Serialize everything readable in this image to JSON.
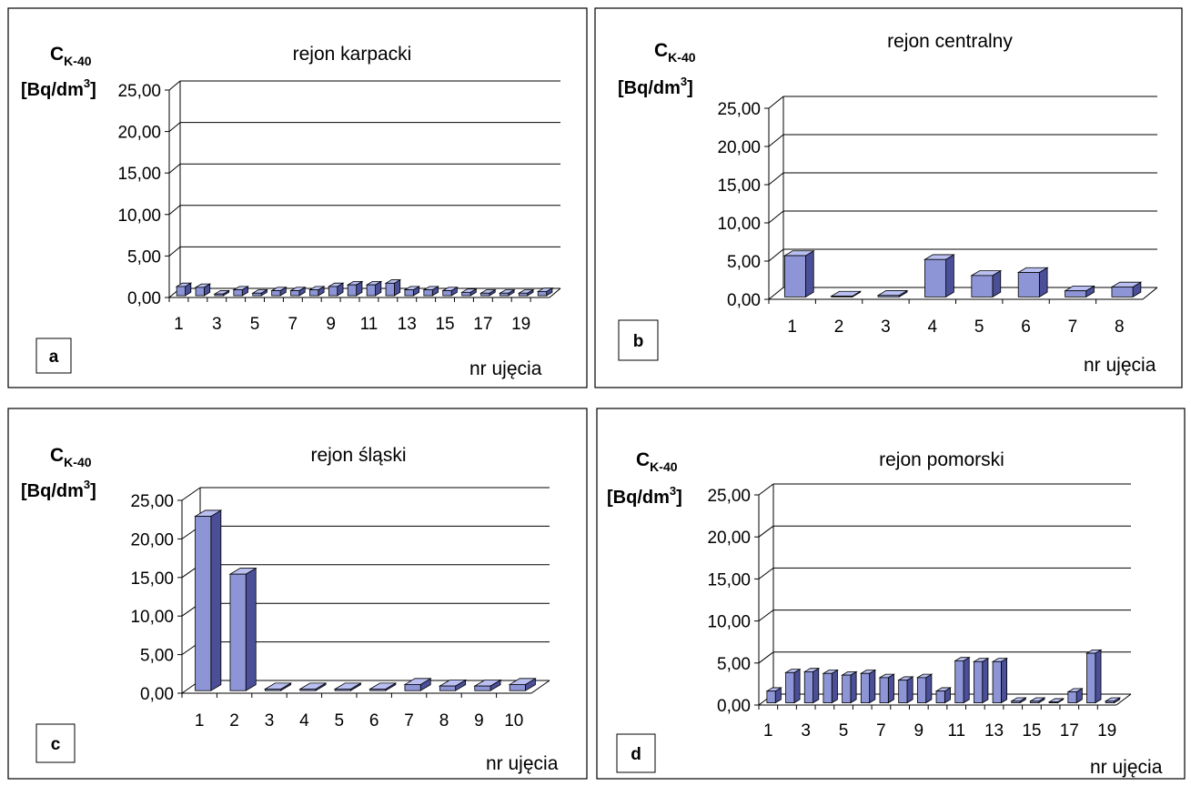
{
  "colors": {
    "bar_front": "#8e95d6",
    "bar_top": "#b9bff0",
    "bar_side": "#4a4f97",
    "grid": "#000000"
  },
  "chart_data": [
    {
      "type": "bar",
      "panel_tag": "a",
      "title": "rejon karpacki",
      "ylabel_main": "C",
      "ylabel_sub": "K-40",
      "yunit_pre": "[Bq/dm",
      "yunit_sup": "3",
      "yunit_post": "]",
      "xlabel": "nr ujęcia",
      "ylim": [
        0,
        25
      ],
      "grid": true,
      "yticks": [
        "0,00",
        "5,00",
        "10,00",
        "15,00",
        "20,00",
        "25,00"
      ],
      "categories": [
        1,
        2,
        3,
        4,
        5,
        6,
        7,
        8,
        9,
        10,
        11,
        12,
        13,
        14,
        15,
        16,
        17,
        18,
        19,
        20
      ],
      "xtick_labels": [
        "1",
        "3",
        "5",
        "7",
        "9",
        "11",
        "13",
        "15",
        "17",
        "19"
      ],
      "values": [
        1.1,
        1.0,
        0.2,
        0.7,
        0.3,
        0.6,
        0.6,
        0.7,
        1.1,
        1.3,
        1.3,
        1.5,
        0.7,
        0.7,
        0.6,
        0.4,
        0.3,
        0.3,
        0.3,
        0.5
      ]
    },
    {
      "type": "bar",
      "panel_tag": "b",
      "title": "rejon centralny",
      "ylabel_main": "C",
      "ylabel_sub": "K-40",
      "yunit_pre": "[Bq/dm",
      "yunit_sup": "3",
      "yunit_post": "]",
      "xlabel": "nr ujęcia",
      "ylim": [
        0,
        25
      ],
      "grid": true,
      "yticks": [
        "0,00",
        "5,00",
        "10,00",
        "15,00",
        "20,00",
        "25,00"
      ],
      "categories": [
        1,
        2,
        3,
        4,
        5,
        6,
        7,
        8
      ],
      "xtick_labels": [
        "1",
        "2",
        "3",
        "4",
        "5",
        "6",
        "7",
        "8"
      ],
      "values": [
        5.4,
        0.1,
        0.2,
        4.9,
        2.8,
        3.2,
        0.8,
        1.3
      ]
    },
    {
      "type": "bar",
      "panel_tag": "c",
      "title": "rejon śląski",
      "ylabel_main": "C",
      "ylabel_sub": "K-40",
      "yunit_pre": "[Bq/dm",
      "yunit_sup": "3",
      "yunit_post": "]",
      "xlabel": "nr ujęcia",
      "ylim": [
        0,
        25
      ],
      "grid": true,
      "yticks": [
        "0,00",
        "5,00",
        "10,00",
        "15,00",
        "20,00",
        "25,00"
      ],
      "categories": [
        1,
        2,
        3,
        4,
        5,
        6,
        7,
        8,
        9,
        10
      ],
      "xtick_labels": [
        "1",
        "2",
        "3",
        "4",
        "5",
        "6",
        "7",
        "8",
        "9",
        "10"
      ],
      "values": [
        22.6,
        15.1,
        0.2,
        0.2,
        0.2,
        0.2,
        0.8,
        0.6,
        0.6,
        0.8
      ]
    },
    {
      "type": "bar",
      "panel_tag": "d",
      "title": "rejon pomorski",
      "ylabel_main": "C",
      "ylabel_sub": "K-40",
      "yunit_pre": "[Bq/dm",
      "yunit_sup": "3",
      "yunit_post": "]",
      "xlabel": "nr ujęcia",
      "ylim": [
        0,
        25
      ],
      "grid": true,
      "yticks": [
        "0,00",
        "5,00",
        "10,00",
        "15,00",
        "20,00",
        "25,00"
      ],
      "categories": [
        1,
        2,
        3,
        4,
        5,
        6,
        7,
        8,
        9,
        10,
        11,
        12,
        13,
        14,
        15,
        16,
        17,
        18,
        19
      ],
      "xtick_labels": [
        "1",
        "3",
        "5",
        "7",
        "9",
        "11",
        "13",
        "15",
        "17",
        "19"
      ],
      "values": [
        1.4,
        3.6,
        3.7,
        3.5,
        3.3,
        3.5,
        3.0,
        2.7,
        3.0,
        1.4,
        5.0,
        4.9,
        4.9,
        0.2,
        0.2,
        0.1,
        1.3,
        5.9,
        0.2
      ]
    }
  ]
}
